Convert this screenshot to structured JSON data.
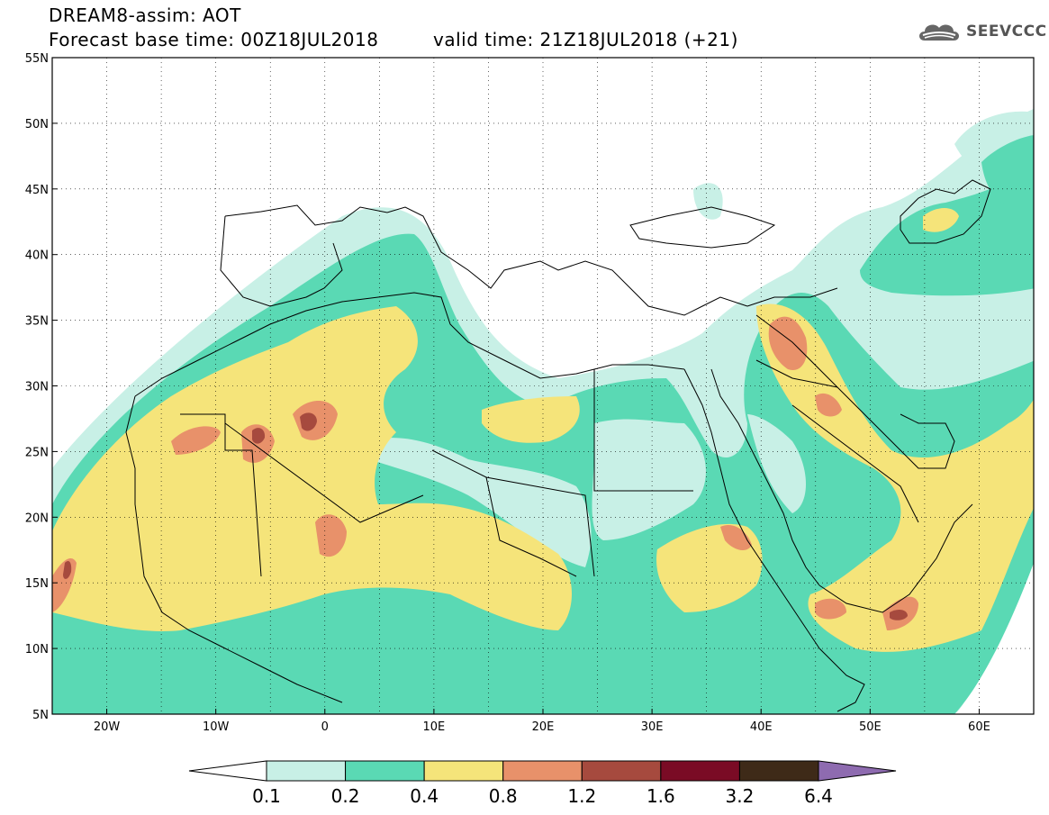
{
  "header": {
    "title_line1": "DREAM8-assim: AOT",
    "title_line2": "Forecast base time: 00Z18JUL2018",
    "valid_time": "valid time: 21Z18JUL2018 (+21)",
    "logo_text": "SEEVCCC",
    "logo_icon": "cloud-icon"
  },
  "map": {
    "lat_labels": [
      "55N",
      "50N",
      "45N",
      "40N",
      "35N",
      "30N",
      "25N",
      "20N",
      "15N",
      "10N",
      "5N"
    ],
    "lon_labels": [
      "20W",
      "10W",
      "0",
      "10E",
      "20E",
      "30E",
      "40E",
      "50E",
      "60E"
    ],
    "lat_range": [
      5,
      55
    ],
    "lon_range": [
      -25,
      65
    ],
    "grid": "dashed"
  },
  "colorbar": {
    "labels": [
      "0.1",
      "0.2",
      "0.4",
      "0.8",
      "1.2",
      "1.6",
      "3.2",
      "6.4"
    ],
    "colors": [
      "#ffffff",
      "#c8f0e6",
      "#5ad9b4",
      "#f5e47a",
      "#e8916a",
      "#a64a3e",
      "#7a0b25",
      "#3e2a18",
      "#8e6bb0"
    ]
  },
  "colors": {
    "level1": "#c8f0e6",
    "level2": "#5ad9b4",
    "level3": "#f5e47a",
    "level4": "#e8916a",
    "level5": "#a64a3e",
    "border": "#000000"
  }
}
